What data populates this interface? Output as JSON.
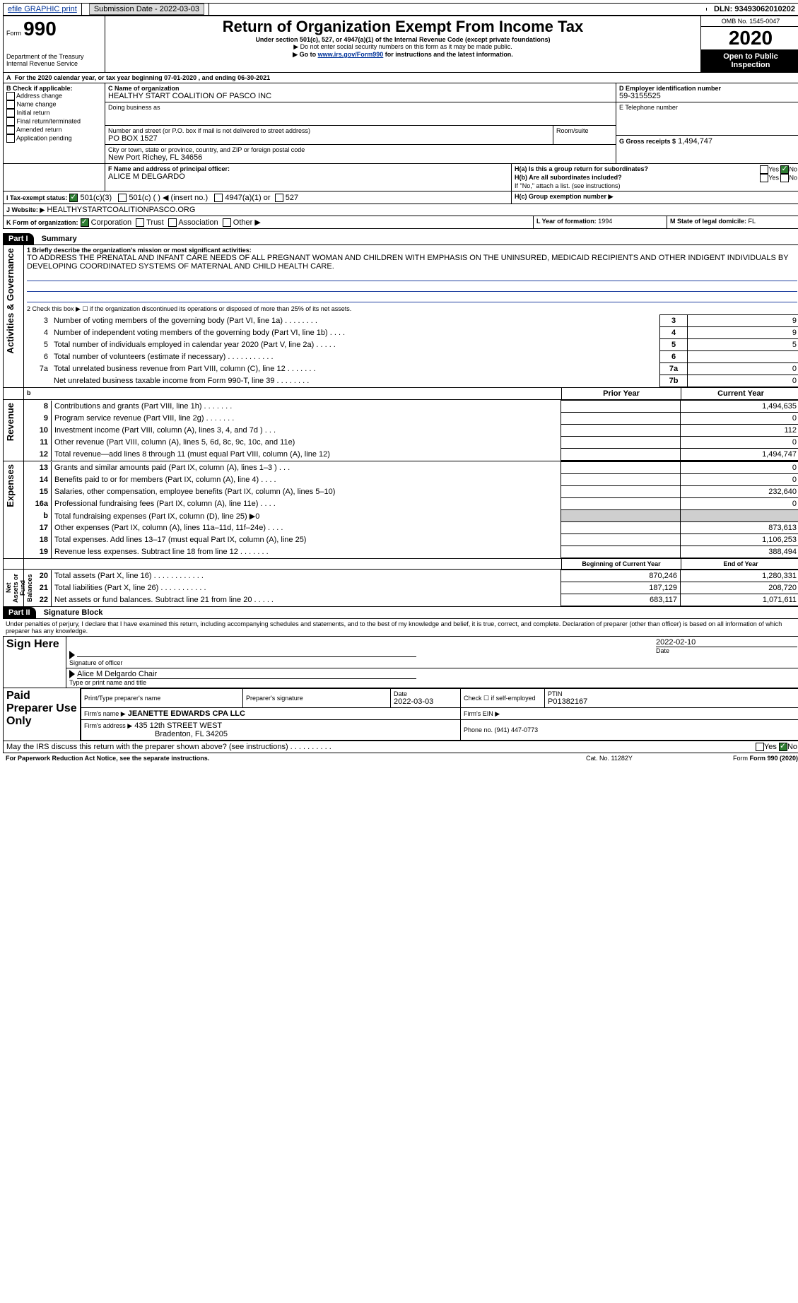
{
  "header_bar": {
    "efile": "efile GRAPHIC print",
    "submission_label": "Submission Date - 2022-03-03",
    "dln_label": "DLN: 93493062010202"
  },
  "form_header": {
    "form_label": "Form",
    "form_number": "990",
    "dept": "Department of the Treasury",
    "irs": "Internal Revenue Service",
    "title": "Return of Organization Exempt From Income Tax",
    "subtitle": "Under section 501(c), 527, or 4947(a)(1) of the Internal Revenue Code (except private foundations)",
    "note1": "▶ Do not enter social security numbers on this form as it may be made public.",
    "note2_pre": "▶ Go to ",
    "note2_link": "www.irs.gov/Form990",
    "note2_post": " for instructions and the latest information.",
    "omb": "OMB No. 1545-0047",
    "year": "2020",
    "inspection": "Open to Public Inspection"
  },
  "period": {
    "line": "For the 2020 calendar year, or tax year beginning 07-01-2020    , and ending 06-30-2021"
  },
  "box_b": {
    "header": "B Check if applicable:",
    "opts": [
      "Address change",
      "Name change",
      "Initial return",
      "Final return/terminated",
      "Amended return",
      "Application pending"
    ]
  },
  "box_c": {
    "label": "C Name of organization",
    "name": "HEALTHY START COALITION OF PASCO INC",
    "dba_label": "Doing business as",
    "addr_label": "Number and street (or P.O. box if mail is not delivered to street address)",
    "room_label": "Room/suite",
    "addr": "PO BOX 1527",
    "city_label": "City or town, state or province, country, and ZIP or foreign postal code",
    "city": "New Port Richey, FL  34656"
  },
  "box_d": {
    "label": "D Employer identification number",
    "value": "59-3155525"
  },
  "box_e": {
    "label": "E Telephone number"
  },
  "box_g": {
    "label": "G Gross receipts $",
    "value": "1,494,747"
  },
  "box_f": {
    "label": "F  Name and address of principal officer:",
    "name": "ALICE M DELGARDO"
  },
  "box_h": {
    "a": "H(a)  Is this a group return for subordinates?",
    "b": "H(b)  Are all subordinates included?",
    "note": "If \"No,\" attach a list. (see instructions)",
    "c": "H(c)  Group exemption number ▶",
    "yes": "Yes",
    "no": "No"
  },
  "box_i": {
    "label": "I    Tax-exempt status:",
    "o1": "501(c)(3)",
    "o2": "501(c) (   ) ◀ (insert no.)",
    "o3": "4947(a)(1) or",
    "o4": "527"
  },
  "box_j": {
    "label": "J    Website: ▶",
    "value": "HEALTHYSTARTCOALITIONPASCO.ORG"
  },
  "box_k": {
    "label": "K Form of organization:",
    "o1": "Corporation",
    "o2": "Trust",
    "o3": "Association",
    "o4": "Other ▶"
  },
  "box_l": {
    "label": "L Year of formation:",
    "value": "1994"
  },
  "box_m": {
    "label": "M State of legal domicile:",
    "value": "FL"
  },
  "part1": {
    "hdr": "Part I",
    "title": "Summary",
    "line1_label": "1  Briefly describe the organization's mission or most significant activities:",
    "mission": "TO ADDRESS THE PRENATAL AND INFANT CARE NEEDS OF ALL PREGNANT WOMAN AND CHILDREN WITH EMPHASIS ON THE UNINSURED, MEDICAID RECIPIENTS AND OTHER INDIGENT INDIVIDUALS BY DEVELOPING COORDINATED SYSTEMS OF MATERNAL AND CHILD HEALTH CARE.",
    "line2": "2   Check this box ▶ ☐ if the organization discontinued its operations or disposed of more than 25% of its net assets.",
    "rows_ag": [
      {
        "n": "3",
        "t": "Number of voting members of the governing body (Part VI, line 1a)  .   .   .   .   .   .   .   .",
        "k": "3",
        "v": "9"
      },
      {
        "n": "4",
        "t": "Number of independent voting members of the governing body (Part VI, line 1b)   .   .   .   .",
        "k": "4",
        "v": "9"
      },
      {
        "n": "5",
        "t": "Total number of individuals employed in calendar year 2020 (Part V, line 2a)   .   .   .   .   .",
        "k": "5",
        "v": "5"
      },
      {
        "n": "6",
        "t": "Total number of volunteers (estimate if necessary)   .   .   .   .   .   .   .   .   .   .   .",
        "k": "6",
        "v": ""
      },
      {
        "n": "7a",
        "t": "Total unrelated business revenue from Part VIII, column (C), line 12   .   .   .   .   .   .   .",
        "k": "7a",
        "v": "0"
      },
      {
        "n": "",
        "t": "Net unrelated business taxable income from Form 990-T, line 39   .   .   .   .   .   .   .   .",
        "k": "7b",
        "v": "0"
      }
    ],
    "col_hdr_prior": "Prior Year",
    "col_hdr_current": "Current Year",
    "rows_rev": [
      {
        "n": "8",
        "t": "Contributions and grants (Part VIII, line 1h)   .   .   .   .   .   .   .",
        "p": "",
        "c": "1,494,635"
      },
      {
        "n": "9",
        "t": "Program service revenue (Part VIII, line 2g)   .   .   .   .   .   .   .",
        "p": "",
        "c": "0"
      },
      {
        "n": "10",
        "t": "Investment income (Part VIII, column (A), lines 3, 4, and 7d )   .   .   .",
        "p": "",
        "c": "112"
      },
      {
        "n": "11",
        "t": "Other revenue (Part VIII, column (A), lines 5, 6d, 8c, 9c, 10c, and 11e)",
        "p": "",
        "c": "0"
      },
      {
        "n": "12",
        "t": "Total revenue—add lines 8 through 11 (must equal Part VIII, column (A), line 12)",
        "p": "",
        "c": "1,494,747"
      }
    ],
    "rows_exp": [
      {
        "n": "13",
        "t": "Grants and similar amounts paid (Part IX, column (A), lines 1–3 )   .   .   .",
        "p": "",
        "c": "0"
      },
      {
        "n": "14",
        "t": "Benefits paid to or for members (Part IX, column (A), line 4)   .   .   .   .",
        "p": "",
        "c": "0"
      },
      {
        "n": "15",
        "t": "Salaries, other compensation, employee benefits (Part IX, column (A), lines 5–10)",
        "p": "",
        "c": "232,640"
      },
      {
        "n": "16a",
        "t": "Professional fundraising fees (Part IX, column (A), line 11e)   .   .   .   .",
        "p": "",
        "c": "0"
      },
      {
        "n": "b",
        "t": "Total fundraising expenses (Part IX, column (D), line 25) ▶0",
        "p": "shade",
        "c": "shade"
      },
      {
        "n": "17",
        "t": "Other expenses (Part IX, column (A), lines 11a–11d, 11f–24e)   .   .   .   .",
        "p": "",
        "c": "873,613"
      },
      {
        "n": "18",
        "t": "Total expenses. Add lines 13–17 (must equal Part IX, column (A), line 25)",
        "p": "",
        "c": "1,106,253"
      },
      {
        "n": "19",
        "t": "Revenue less expenses. Subtract line 18 from line 12   .   .   .   .   .   .   .",
        "p": "",
        "c": "388,494"
      }
    ],
    "col_hdr_begin": "Beginning of Current Year",
    "col_hdr_end": "End of Year",
    "rows_na": [
      {
        "n": "20",
        "t": "Total assets (Part X, line 16)   .   .   .   .   .   .   .   .   .   .   .   .",
        "p": "870,246",
        "c": "1,280,331"
      },
      {
        "n": "21",
        "t": "Total liabilities (Part X, line 26)   .   .   .   .   .   .   .   .   .   .   .",
        "p": "187,129",
        "c": "208,720"
      },
      {
        "n": "22",
        "t": "Net assets or fund balances. Subtract line 21 from line 20   .   .   .   .   .",
        "p": "683,117",
        "c": "1,071,611"
      }
    ],
    "vlabels": {
      "ag": "Activities & Governance",
      "rev": "Revenue",
      "exp": "Expenses",
      "na": "Net Assets or Fund Balances"
    }
  },
  "part2": {
    "hdr": "Part II",
    "title": "Signature Block",
    "perjury": "Under penalties of perjury, I declare that I have examined this return, including accompanying schedules and statements, and to the best of my knowledge and belief, it is true, correct, and complete. Declaration of preparer (other than officer) is based on all information of which preparer has any knowledge."
  },
  "sign": {
    "label": "Sign Here",
    "sig_label": "Signature of officer",
    "date_label": "Date",
    "date": "2022-02-10",
    "name": "Alice M Delgardo  Chair",
    "name_label": "Type or print name and title"
  },
  "paid": {
    "label": "Paid Preparer Use Only",
    "r1": {
      "c1": "Print/Type preparer's name",
      "c2": "Preparer's signature",
      "c3": "Date",
      "c3v": "2022-03-03",
      "c4": "Check ☐ if self-employed",
      "c5": "PTIN",
      "c5v": "P01382167"
    },
    "r2": {
      "c1": "Firm's name    ▶",
      "c1v": "JEANETTE EDWARDS CPA LLC",
      "c2": "Firm's EIN ▶"
    },
    "r3": {
      "c1": "Firm's address ▶",
      "c1v": "435 12th STREET WEST",
      "c1v2": "Bradenton, FL  34205",
      "c2": "Phone no. (941) 447-0773"
    }
  },
  "footer": {
    "discuss": "May the IRS discuss this return with the preparer shown above? (see instructions)   .   .   .   .   .   .   .   .   .   .",
    "yes": "Yes",
    "no": "No",
    "pra": "For Paperwork Reduction Act Notice, see the separate instructions.",
    "cat": "Cat. No. 11282Y",
    "form": "Form 990 (2020)"
  }
}
